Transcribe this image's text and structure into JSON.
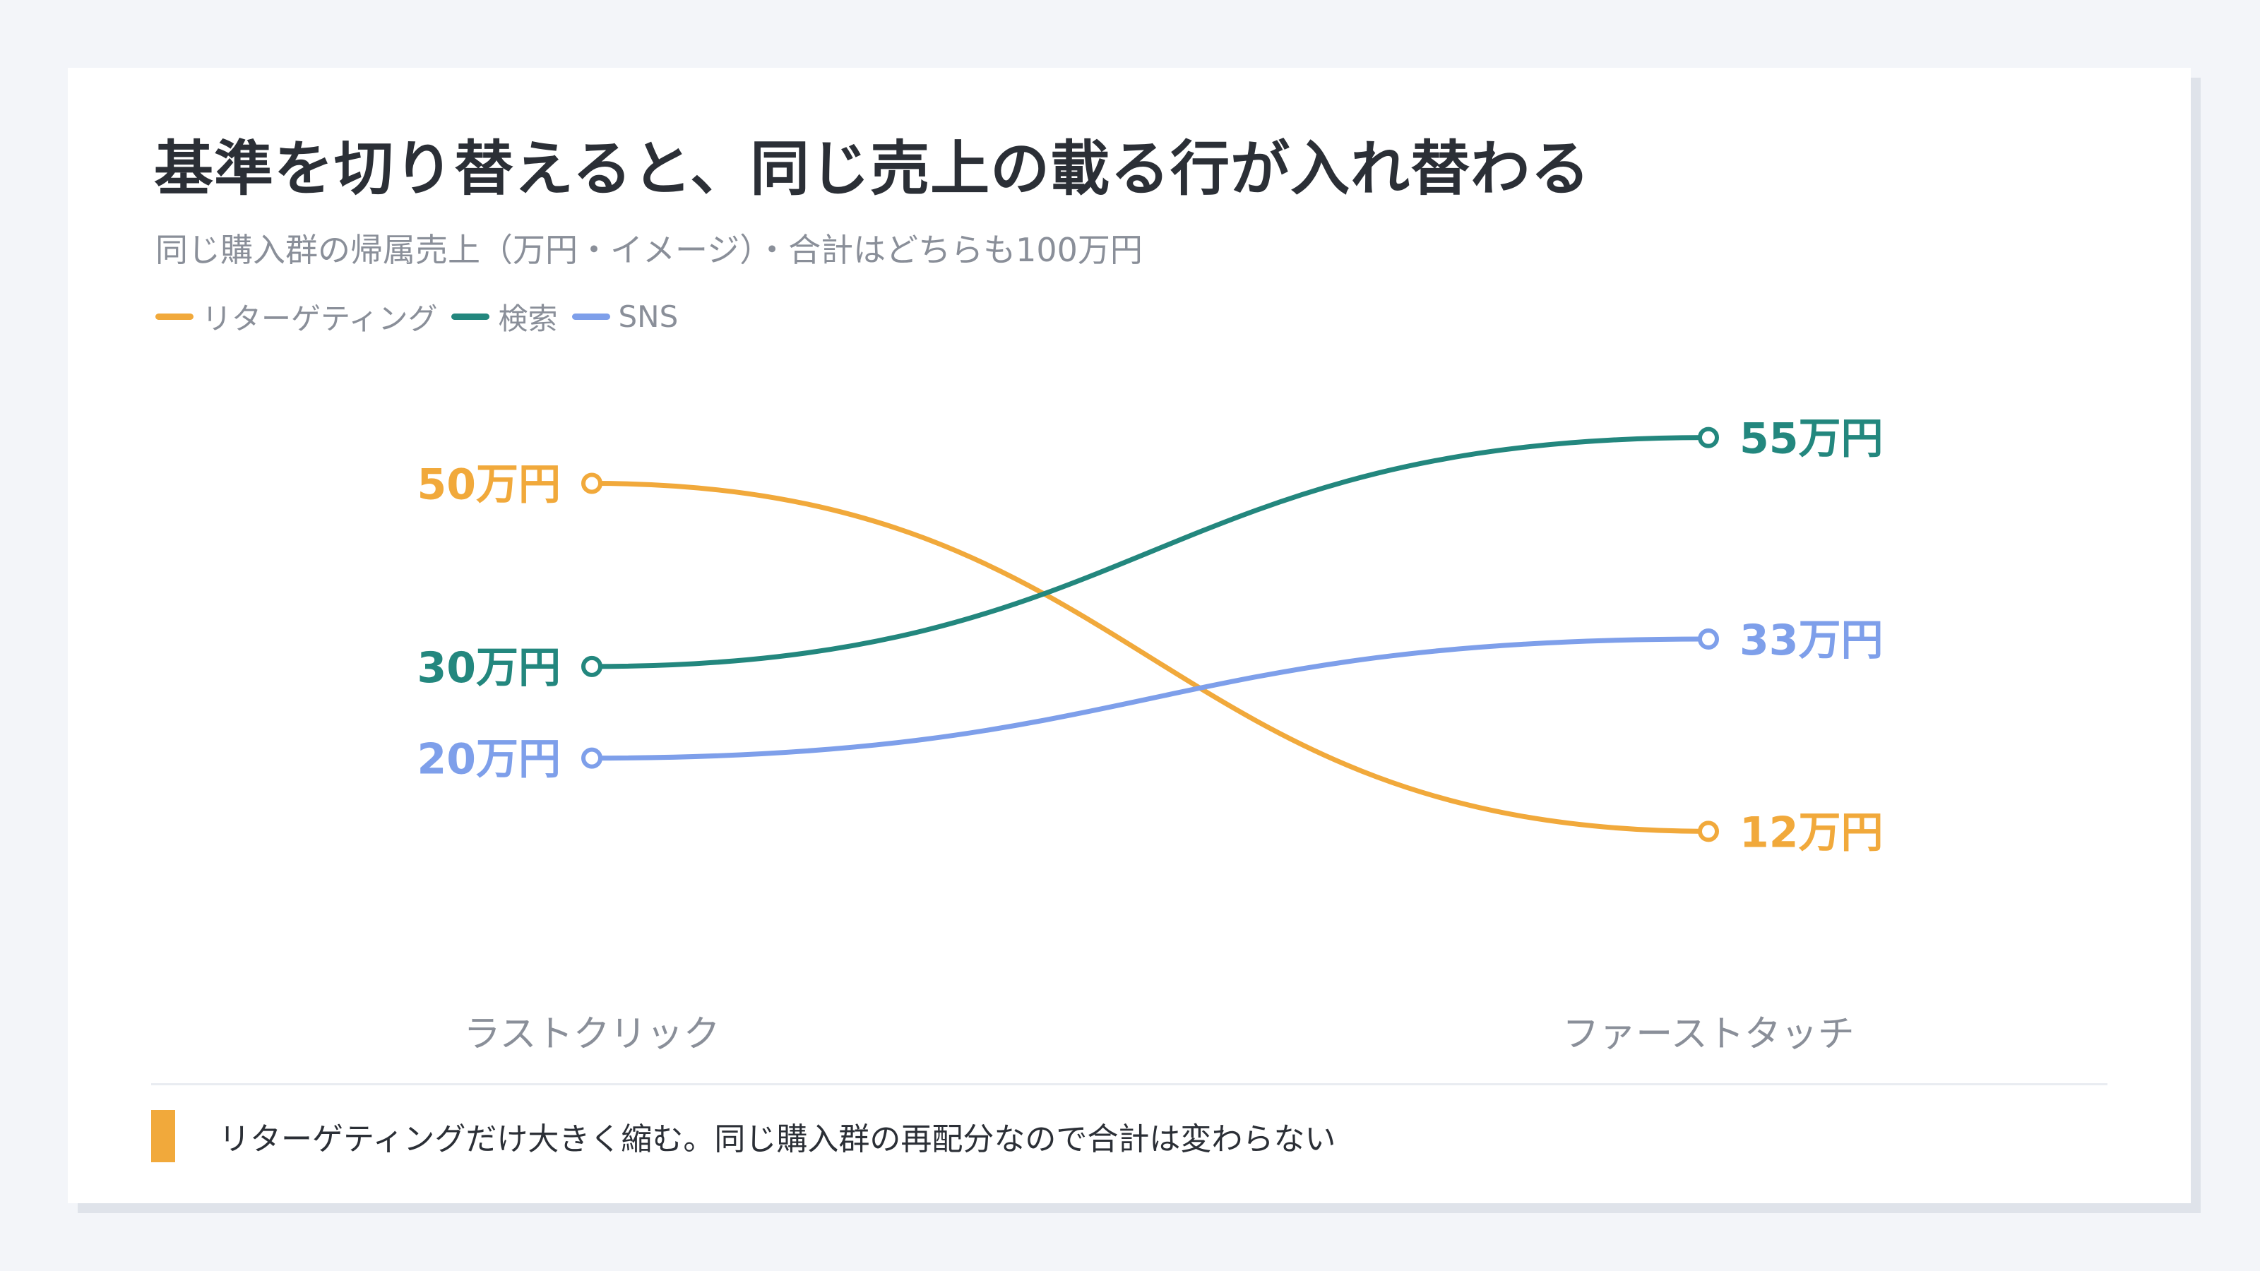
{
  "title": "基準を切り替えると、同じ売上の載る行が入れ替わる",
  "subtitle": "同じ購入群の帰属売上（万円・イメージ）・合計はどちらも100万円",
  "note": "リターゲティングだけ大きく縮む。同じ購入群の再配分なので合計は変わらない",
  "colors": {
    "retargeting": "#f1a93b",
    "search": "#23877e",
    "sns": "#7e9fea"
  },
  "chart_data": {
    "type": "slope",
    "categories": [
      "ラストクリック",
      "ファーストタッチ"
    ],
    "unit": "万円",
    "series": [
      {
        "name": "リターゲティング",
        "values": [
          50,
          12
        ],
        "labels": [
          "50万円",
          "12万円"
        ],
        "color": "#f1a93b"
      },
      {
        "name": "検索",
        "values": [
          30,
          55
        ],
        "labels": [
          "30万円",
          "55万円"
        ],
        "color": "#23877e"
      },
      {
        "name": "SNS",
        "values": [
          20,
          33
        ],
        "labels": [
          "20万円",
          "33万円"
        ],
        "color": "#7e9fea"
      }
    ],
    "legend": "top-left",
    "grid": false
  }
}
